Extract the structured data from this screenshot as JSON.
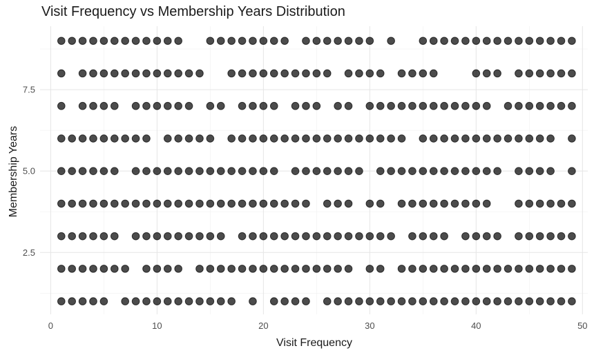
{
  "chart_data": {
    "type": "scatter",
    "title": "Visit Frequency vs Membership Years Distribution",
    "xlabel": "Visit Frequency",
    "ylabel": "Membership Years",
    "xlim": [
      -1,
      50.5
    ],
    "ylim": [
      0.6,
      9.45
    ],
    "x_ticks": [
      0,
      10,
      20,
      30,
      40,
      50
    ],
    "x_tick_labels": [
      "0",
      "10",
      "20",
      "30",
      "40",
      "50"
    ],
    "y_ticks": [
      2.5,
      5.0,
      7.5
    ],
    "y_tick_labels": [
      "2.5",
      "5.0",
      "7.5"
    ],
    "grid": true,
    "legend": "none",
    "point_color": "#000000",
    "point_alpha": 0.7,
    "points_by_level": [
      {
        "y": 9,
        "x": [
          1,
          2,
          3,
          4,
          5,
          6,
          7,
          8,
          9,
          10,
          11,
          12,
          15,
          16,
          17,
          18,
          19,
          20,
          21,
          22,
          24,
          25,
          26,
          27,
          28,
          29,
          30,
          32,
          35,
          36,
          37,
          38,
          39,
          40,
          41,
          42,
          43,
          44,
          45,
          46,
          47,
          48,
          49
        ]
      },
      {
        "y": 8,
        "x": [
          1,
          3,
          4,
          5,
          6,
          7,
          8,
          9,
          10,
          11,
          12,
          13,
          14,
          17,
          18,
          19,
          20,
          21,
          22,
          23,
          24,
          25,
          26,
          28,
          29,
          30,
          31,
          33,
          34,
          35,
          36,
          40,
          41,
          42,
          44,
          45,
          46,
          47,
          48,
          49
        ]
      },
      {
        "y": 7,
        "x": [
          1,
          3,
          4,
          5,
          6,
          8,
          9,
          10,
          11,
          12,
          13,
          15,
          16,
          18,
          19,
          20,
          21,
          23,
          24,
          25,
          27,
          28,
          30,
          31,
          32,
          33,
          34,
          35,
          36,
          37,
          38,
          39,
          40,
          41,
          43,
          44,
          45,
          46,
          47,
          48,
          49
        ]
      },
      {
        "y": 6,
        "x": [
          1,
          2,
          3,
          4,
          5,
          6,
          7,
          8,
          9,
          11,
          12,
          13,
          14,
          15,
          17,
          18,
          19,
          20,
          21,
          22,
          23,
          24,
          25,
          26,
          27,
          28,
          29,
          30,
          31,
          32,
          33,
          35,
          36,
          37,
          38,
          39,
          40,
          41,
          42,
          43,
          44,
          45,
          46,
          47,
          49
        ]
      },
      {
        "y": 5,
        "x": [
          1,
          2,
          3,
          4,
          5,
          6,
          8,
          9,
          10,
          11,
          12,
          13,
          14,
          15,
          16,
          17,
          18,
          19,
          20,
          21,
          23,
          24,
          25,
          26,
          27,
          28,
          29,
          31,
          32,
          33,
          34,
          35,
          36,
          37,
          38,
          39,
          40,
          41,
          42,
          44,
          45,
          46,
          47,
          49
        ]
      },
      {
        "y": 4,
        "x": [
          1,
          2,
          3,
          4,
          5,
          6,
          7,
          8,
          9,
          10,
          11,
          12,
          13,
          14,
          15,
          16,
          17,
          18,
          19,
          20,
          21,
          22,
          23,
          24,
          26,
          27,
          28,
          30,
          31,
          33,
          34,
          35,
          36,
          37,
          38,
          39,
          40,
          41,
          44,
          45,
          46,
          47,
          48,
          49
        ]
      },
      {
        "y": 3,
        "x": [
          1,
          2,
          3,
          4,
          5,
          6,
          8,
          9,
          10,
          11,
          12,
          13,
          14,
          15,
          16,
          18,
          19,
          20,
          21,
          22,
          23,
          24,
          25,
          26,
          27,
          28,
          29,
          30,
          31,
          32,
          34,
          35,
          36,
          37,
          39,
          40,
          41,
          42,
          44,
          45,
          46,
          47,
          48,
          49
        ]
      },
      {
        "y": 2,
        "x": [
          1,
          2,
          3,
          4,
          5,
          6,
          7,
          9,
          10,
          11,
          12,
          14,
          15,
          16,
          17,
          18,
          19,
          20,
          21,
          22,
          23,
          24,
          25,
          26,
          27,
          28,
          30,
          31,
          33,
          34,
          35,
          36,
          37,
          38,
          39,
          40,
          41,
          42,
          43,
          44,
          45,
          46,
          47,
          48,
          49
        ]
      },
      {
        "y": 1,
        "x": [
          1,
          2,
          3,
          4,
          5,
          7,
          8,
          9,
          10,
          11,
          12,
          13,
          14,
          15,
          16,
          17,
          19,
          21,
          22,
          23,
          24,
          26,
          27,
          28,
          29,
          30,
          31,
          32,
          33,
          34,
          35,
          36,
          37,
          38,
          39,
          40,
          41,
          42,
          43,
          44,
          45,
          46,
          47,
          48,
          49
        ]
      }
    ]
  }
}
